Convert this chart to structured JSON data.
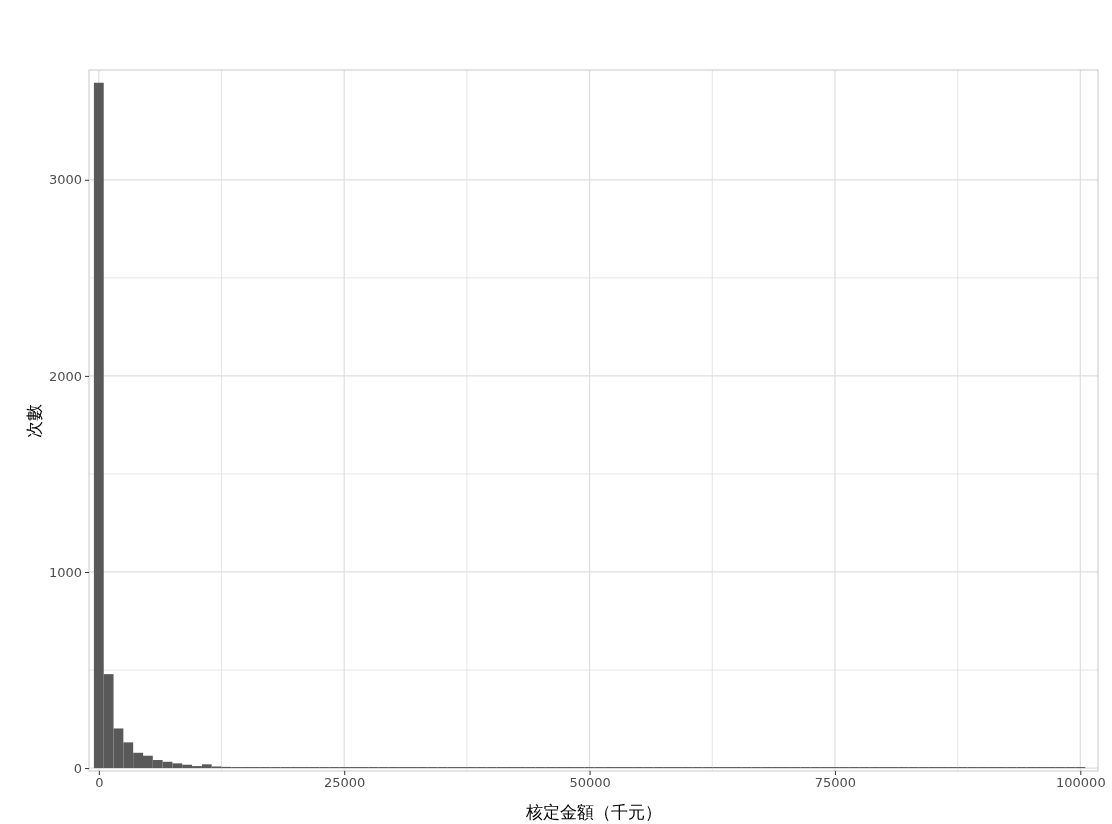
{
  "chart_data": {
    "type": "histogram",
    "xlabel": "核定金額（千元）",
    "ylabel": "次數",
    "color": "#595959",
    "bins": [
      -500,
      500,
      1500,
      2500,
      3500,
      4500,
      5500,
      6500,
      7500,
      8500,
      9500,
      10500,
      11500,
      12500,
      13500,
      14500,
      15500,
      16500,
      17500,
      18500,
      19500,
      20500,
      21500,
      22500,
      23500,
      24500,
      25500,
      26500,
      27500,
      28500,
      29500,
      30500,
      31500,
      32500,
      33500,
      34500,
      35500,
      36500,
      37500,
      38500,
      39500,
      40500,
      41500,
      42500,
      43500,
      44500,
      45500,
      46500,
      47500,
      48500,
      49500,
      50500,
      51500,
      52500,
      53500,
      54500,
      55500,
      56500,
      57500,
      58500,
      59500,
      60500,
      61500,
      62500,
      63500,
      64500,
      65500,
      66500,
      67500,
      68500,
      69500,
      70500,
      71500,
      72500,
      73500,
      74500,
      75500,
      76500,
      77500,
      78500,
      79500,
      80500,
      81500,
      82500,
      83500,
      84500,
      85500,
      86500,
      87500,
      88500,
      89500,
      90500,
      91500,
      92500,
      93500,
      94500,
      95500,
      96500,
      97500,
      98500,
      99500,
      100500
    ],
    "values": [
      3495,
      479,
      202,
      131,
      78,
      63,
      41,
      32,
      24,
      17,
      10,
      19,
      8,
      6,
      5,
      5,
      4,
      4,
      4,
      3,
      3,
      0,
      0,
      0,
      3,
      3,
      0,
      0,
      0,
      0,
      0,
      3,
      0,
      0,
      0,
      3,
      0,
      0,
      0,
      0,
      0,
      0,
      0,
      0,
      0,
      0,
      0,
      0,
      0,
      0,
      0,
      0,
      0,
      0,
      0,
      0,
      0,
      0,
      0,
      0,
      0,
      0,
      0,
      0,
      0,
      0,
      0,
      0,
      0,
      0,
      0,
      0,
      0,
      0,
      0,
      0,
      0,
      0,
      0,
      0,
      0,
      0,
      0,
      0,
      0,
      0,
      0,
      0,
      0,
      0,
      0,
      0,
      0,
      0,
      0,
      0,
      0,
      0,
      0,
      0,
      3
    ],
    "xlim": [
      -1000,
      101800
    ],
    "ylim": [
      -15,
      3560
    ],
    "xticks": [
      0,
      {
        "value": 12500,
        "label": null
      },
      25000,
      {
        "value": 37500,
        "label": null
      },
      50000,
      {
        "value": 62500,
        "label": null
      },
      75000,
      {
        "value": 87500,
        "label": null
      },
      100000
    ],
    "yticks": [
      0,
      {
        "value": 500,
        "label": null
      },
      1000,
      {
        "value": 1500,
        "label": null
      },
      2000,
      {
        "value": 2500,
        "label": null
      },
      3000
    ],
    "grid": true
  }
}
